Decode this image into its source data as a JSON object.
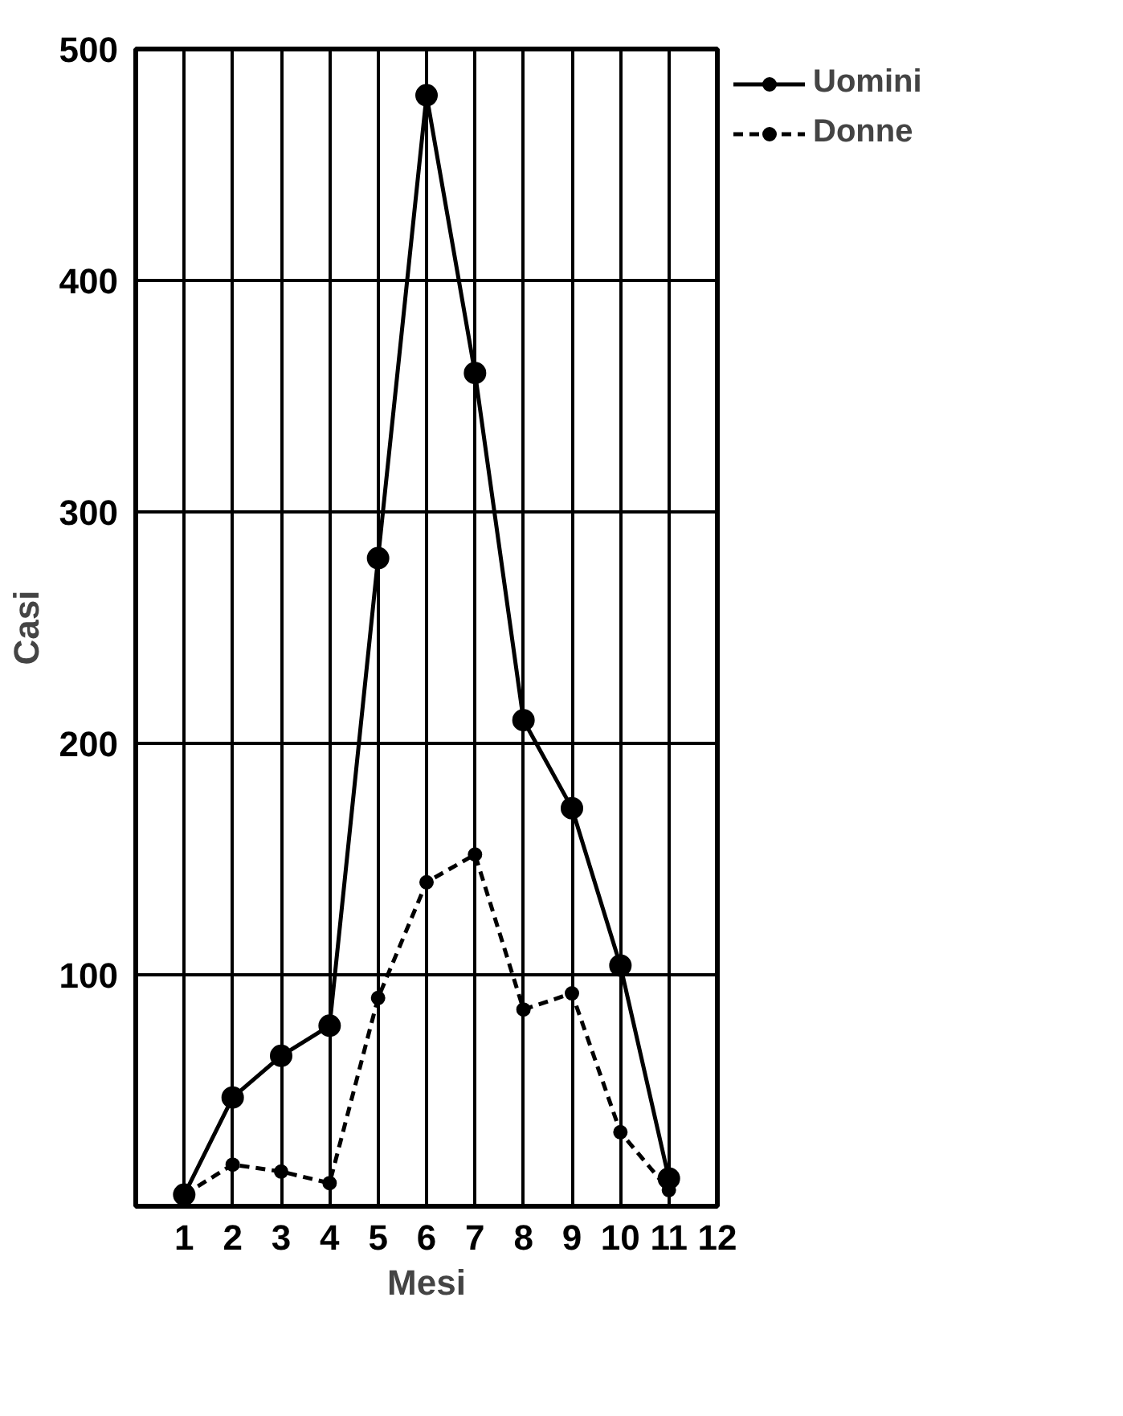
{
  "chart_data": {
    "type": "line",
    "xlabel": "Mesi",
    "ylabel": "Casi",
    "x": [
      1,
      2,
      3,
      4,
      5,
      6,
      7,
      8,
      9,
      10,
      11
    ],
    "series": [
      {
        "name": "Uomini",
        "color": "#000000",
        "line_style": "solid",
        "values": [
          5,
          47,
          65,
          78,
          280,
          480,
          360,
          210,
          172,
          104,
          12
        ]
      },
      {
        "name": "Donne",
        "color": "#000000",
        "line_style": "dashed",
        "values": [
          5,
          18,
          15,
          10,
          90,
          140,
          152,
          85,
          92,
          32,
          7
        ]
      }
    ],
    "xlim": [
      0,
      12
    ],
    "ylim": [
      0,
      500
    ],
    "xticks": [
      1,
      2,
      3,
      4,
      5,
      6,
      7,
      8,
      9,
      10,
      11,
      12
    ],
    "yticks": [
      100,
      200,
      300,
      400,
      500
    ],
    "grid": true,
    "legend": "top right",
    "marker": "circle"
  }
}
